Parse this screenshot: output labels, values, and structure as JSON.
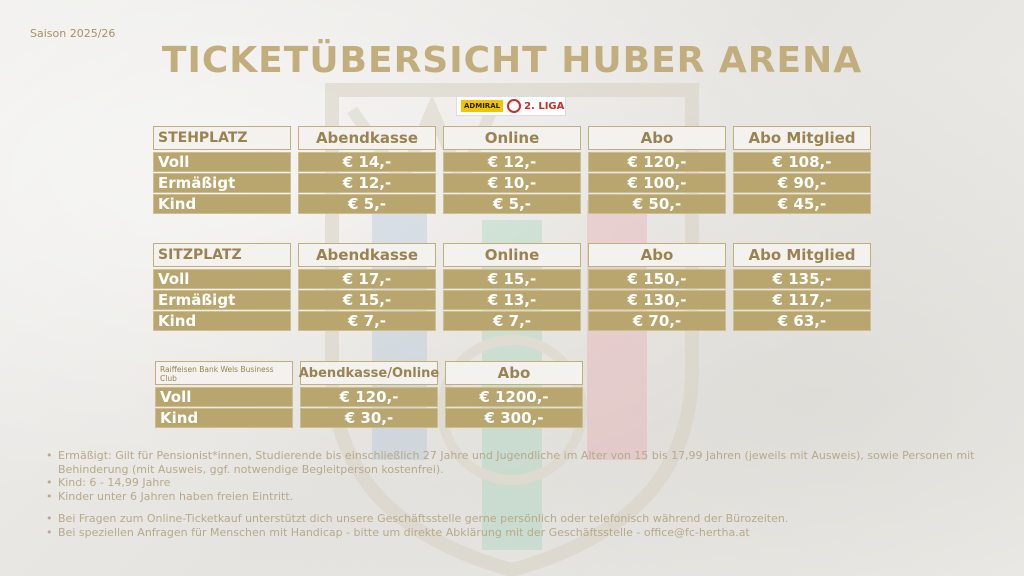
{
  "season": "Saison 2025/26",
  "title": "TICKETÜBERSICHT HUBER ARENA",
  "logo": {
    "brand": "ADMIRAL",
    "league": "2. LIGA"
  },
  "stehplatz": {
    "header": [
      "STEHPLATZ",
      "Abendkasse",
      "Online",
      "Abo",
      "Abo Mitglied"
    ],
    "rows": [
      [
        "Voll",
        "€ 14,-",
        "€ 12,-",
        "€ 120,-",
        "€ 108,-"
      ],
      [
        "Ermäßigt",
        "€ 12,-",
        "€ 10,-",
        "€ 100,-",
        "€ 90,-"
      ],
      [
        "Kind",
        "€ 5,-",
        "€ 5,-",
        "€ 50,-",
        "€ 45,-"
      ]
    ]
  },
  "sitzplatz": {
    "header": [
      "SITZPLATZ",
      "Abendkasse",
      "Online",
      "Abo",
      "Abo Mitglied"
    ],
    "rows": [
      [
        "Voll",
        "€ 17,-",
        "€ 15,-",
        "€ 150,-",
        "€ 135,-"
      ],
      [
        "Ermäßigt",
        "€ 15,-",
        "€ 13,-",
        "€ 130,-",
        "€ 117,-"
      ],
      [
        "Kind",
        "€ 7,-",
        "€ 7,-",
        "€ 70,-",
        "€ 63,-"
      ]
    ]
  },
  "business": {
    "header": [
      "Raiffeisen Bank Wels Business Club",
      "Abendkasse/Online",
      "Abo"
    ],
    "rows": [
      [
        "Voll",
        "€ 120,-",
        "€ 1200,-"
      ],
      [
        "Kind",
        "€ 30,-",
        "€ 300,-"
      ]
    ]
  },
  "notes": [
    "Ermäßigt: Gilt für Pensionist*innen, Studierende bis einschließlich 27 Jahre und Jugendliche im Alter von 15 bis 17,99 Jahren (jeweils mit Ausweis), sowie Personen mit Behinderung (mit Ausweis, ggf. notwendige Begleitperson kostenfrei).",
    "Kind: 6 - 14,99 Jahre",
    "Kinder unter 6 Jahren haben freien Eintritt.",
    "Bei Fragen zum Online-Ticketkauf unterstützt dich unsere Geschäftsstelle gerne persönlich oder telefonisch während der Bürozeiten.",
    "Bei speziellen Anfragen für Menschen mit Handicap - bitte um direkte Abklärung mit der Geschäftsstelle - office@fc-hertha.at"
  ],
  "colors": {
    "gold": "#b9a66f",
    "title_gold": "#c2ad7d",
    "background": "#ecebe8"
  }
}
